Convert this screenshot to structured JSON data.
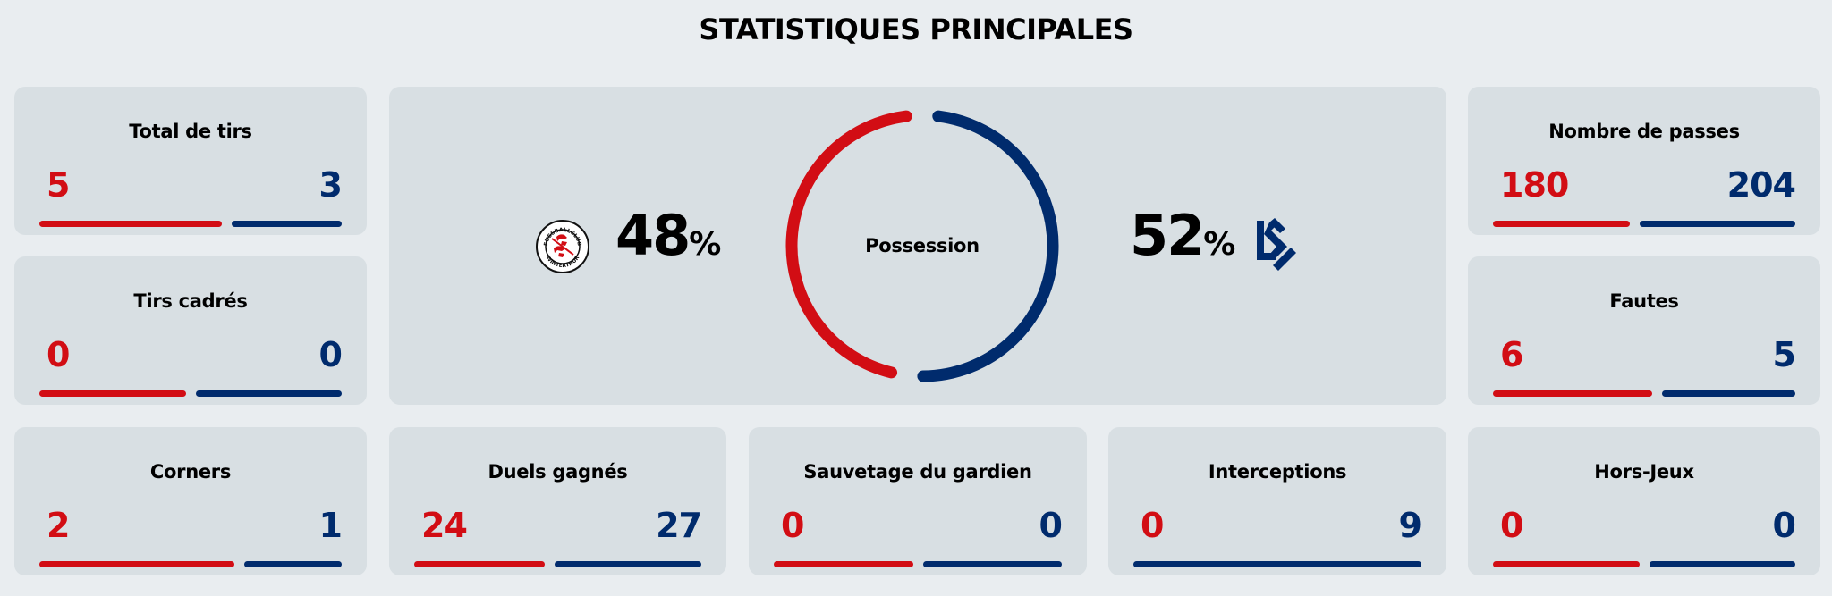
{
  "page_title": "STATISTIQUES PRINCIPALES",
  "colors": {
    "home": "#d20d14",
    "away": "#002b6d",
    "card_bg": "#d8dfe3",
    "page_bg": "#e9edf0"
  },
  "teams": {
    "home": {
      "name": "FC Winterthur",
      "logo_icon": "fc-winterthur-crest-icon",
      "logo_text_top": "FUSSBALLCLUB",
      "logo_text_bottom": "WINTERTHUR"
    },
    "away": {
      "name": "FC Lausanne-Sport",
      "logo_icon": "lausanne-sport-ls-logo-icon"
    }
  },
  "possession": {
    "label": "Possession",
    "home_value": "48",
    "away_value": "52",
    "unit": "%"
  },
  "stats": [
    {
      "id": "total-tirs",
      "label": "Total de tirs",
      "home": 5,
      "away": 3
    },
    {
      "id": "tirs-cadres",
      "label": "Tirs cadrés",
      "home": 0,
      "away": 0
    },
    {
      "id": "corners",
      "label": "Corners",
      "home": 2,
      "away": 1
    },
    {
      "id": "duels-gagnes",
      "label": "Duels gagnés",
      "home": 24,
      "away": 27
    },
    {
      "id": "sauvetage-gardien",
      "label": "Sauvetage du gardien",
      "home": 0,
      "away": 0
    },
    {
      "id": "interceptions",
      "label": "Interceptions",
      "home": 0,
      "away": 9
    },
    {
      "id": "nombre-passes",
      "label": "Nombre de passes",
      "home": 180,
      "away": 204
    },
    {
      "id": "fautes",
      "label": "Fautes",
      "home": 6,
      "away": 5
    },
    {
      "id": "hors-jeux",
      "label": "Hors-Jeux",
      "home": 0,
      "away": 0
    }
  ],
  "chart_data": {
    "type": "table",
    "title": "STATISTIQUES PRINCIPALES",
    "categories": [
      "Possession (%)",
      "Total de tirs",
      "Tirs cadrés",
      "Corners",
      "Duels gagnés",
      "Sauvetage du gardien",
      "Interceptions",
      "Nombre de passes",
      "Fautes",
      "Hors-Jeux"
    ],
    "series": [
      {
        "name": "FC Winterthur",
        "values": [
          48,
          5,
          0,
          2,
          24,
          0,
          0,
          180,
          6,
          0
        ]
      },
      {
        "name": "FC Lausanne-Sport",
        "values": [
          52,
          3,
          0,
          1,
          27,
          0,
          9,
          204,
          5,
          0
        ]
      }
    ]
  }
}
